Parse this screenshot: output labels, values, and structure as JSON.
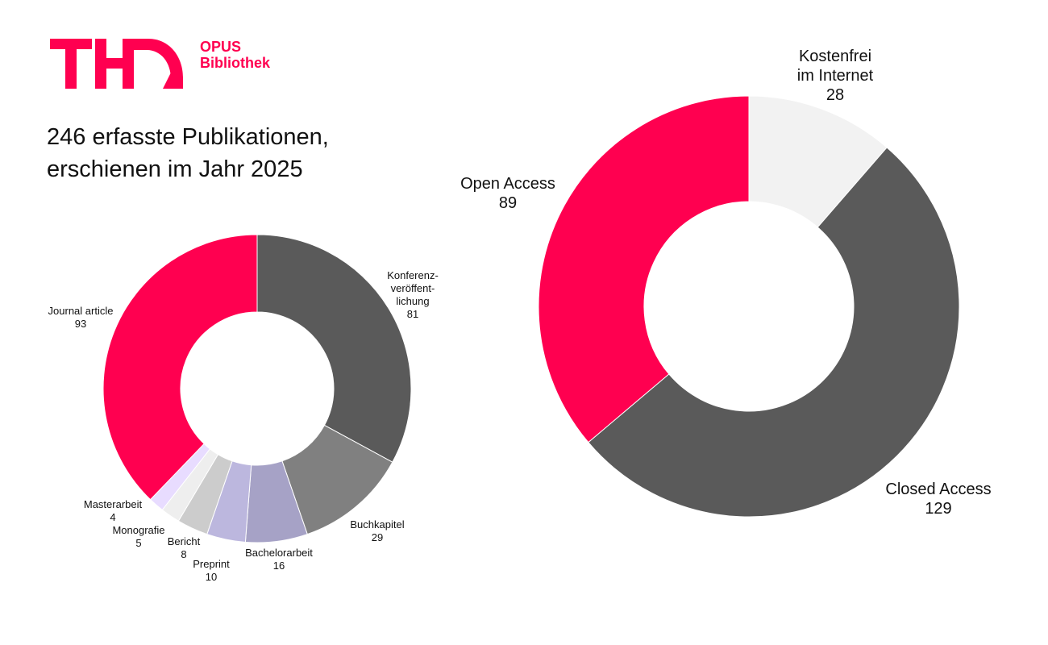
{
  "brand": {
    "logo_text": "TH",
    "name_line1": "OPUS",
    "name_line2": "Bibliothek",
    "accent_color": "#ff0050"
  },
  "headline": {
    "line1": "246 erfasste Publikationen,",
    "line2": "erschienen im Jahr 2025"
  },
  "chart_data": [
    {
      "type": "donut",
      "title": "",
      "slices": [
        {
          "label": [
            "Konferenz-",
            "veröffent-",
            "lichung"
          ],
          "value": 81,
          "color": "#5a5a5a"
        },
        {
          "label": [
            "Buchkapitel"
          ],
          "value": 29,
          "color": "#808080"
        },
        {
          "label": [
            "Bachelorarbeit"
          ],
          "value": 16,
          "color": "#a6a2c6"
        },
        {
          "label": [
            "Preprint"
          ],
          "value": 10,
          "color": "#bcb7de"
        },
        {
          "label": [
            "Bericht"
          ],
          "value": 8,
          "color": "#cccccc"
        },
        {
          "label": [
            "Monografie"
          ],
          "value": 5,
          "color": "#eeeeee"
        },
        {
          "label": [
            "Masterarbeit"
          ],
          "value": 4,
          "color": "#e8dcff"
        },
        {
          "label": [
            "Journal article"
          ],
          "value": 93,
          "color": "#ff0050"
        }
      ]
    },
    {
      "type": "donut",
      "title": "",
      "slices": [
        {
          "label": [
            "Kostenfrei",
            "im Internet"
          ],
          "value": 28,
          "color": "#f2f2f2"
        },
        {
          "label": [
            "Closed Access"
          ],
          "value": 129,
          "color": "#5a5a5a"
        },
        {
          "label": [
            "Open Access"
          ],
          "value": 89,
          "color": "#ff0050"
        }
      ]
    }
  ]
}
